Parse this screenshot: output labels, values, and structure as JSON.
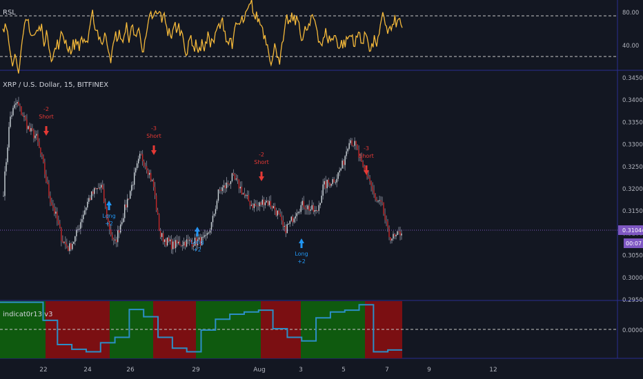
{
  "colors": {
    "background": "#131722",
    "separator": "#2a2e90",
    "rsi_line": "#f5b93a",
    "up_candle": "#cfd8dc",
    "down_candle": "#c62828",
    "wick": "#8d92a0",
    "short_signal": "#e53935",
    "long_signal": "#2196f3",
    "price_tag": "#7e57c2",
    "zone_bull": "#0f5a0f",
    "zone_bear": "#7b0f12",
    "indicator_line": "#2c8fc7"
  },
  "rsi_panel": {
    "title": "RSL",
    "axis_labels": [
      "80.00",
      "40.00"
    ]
  },
  "price_panel": {
    "title": "XRP / U.S. Dollar, 15, BITFINEX",
    "axis_labels": [
      "0.34500",
      "0.34000",
      "0.33500",
      "0.33000",
      "0.32500",
      "0.32000",
      "0.31500",
      "0.31000",
      "0.30500",
      "0.30000",
      "0.29500"
    ],
    "current_price": "0.31044",
    "countdown": "00:07"
  },
  "indicator_panel": {
    "title": "indicat0r13 v3",
    "axis_label": "0.00000"
  },
  "x_axis": {
    "labels": [
      "22",
      "24",
      "26",
      "29",
      "Aug",
      "3",
      "5",
      "7",
      "9",
      "12"
    ]
  },
  "chart_data": {
    "type": "candlestick",
    "series": [
      {
        "name": "XRP / U.S. Dollar",
        "values": [
          0.3195,
          0.336,
          0.3395,
          0.3365,
          0.333,
          0.3318,
          0.326,
          0.3185,
          0.314,
          0.3085,
          0.3065,
          0.309,
          0.3135,
          0.3175,
          0.3195,
          0.3205,
          0.3125,
          0.3072,
          0.3125,
          0.3175,
          0.3225,
          0.3275,
          0.325,
          0.3205,
          0.3095,
          0.3082,
          0.3072,
          0.3078,
          0.308,
          0.308,
          0.3082,
          0.3085,
          0.3125,
          0.3195,
          0.3205,
          0.3225,
          0.321,
          0.3182,
          0.3165,
          0.316,
          0.3175,
          0.3165,
          0.3145,
          0.3105,
          0.3125,
          0.3155,
          0.3165,
          0.3155,
          0.3145,
          0.3205,
          0.3215,
          0.3225,
          0.3255,
          0.3315,
          0.3295,
          0.3245,
          0.3225,
          0.3172,
          0.3162,
          0.3095,
          0.3088,
          0.3105
        ]
      }
    ],
    "signals": [
      {
        "label_top": "-2",
        "label": "Short",
        "kind": "short"
      },
      {
        "label_top": "-3",
        "label": "Short",
        "kind": "short"
      },
      {
        "label_top": "-2",
        "label": "Short",
        "kind": "short"
      },
      {
        "label_top": "-3",
        "label": "Short",
        "kind": "short"
      },
      {
        "label": "Long",
        "label_bottom": "+2",
        "kind": "long"
      },
      {
        "label": "Long",
        "label_bottom": "+2",
        "kind": "long"
      },
      {
        "label": "Long",
        "label_bottom": "+2",
        "kind": "long"
      }
    ],
    "rsi": {
      "range": [
        22,
        97
      ],
      "levels": [
        80,
        40
      ]
    },
    "indicator": {
      "zones": [
        "bull",
        "bear",
        "bull",
        "bear",
        "bull",
        "bear",
        "bull",
        "bear"
      ],
      "line": [
        0.0075,
        0.0075,
        0.0075,
        0.0025,
        -0.0042,
        -0.0055,
        -0.0062,
        -0.0037,
        -0.0022,
        0.0055,
        0.0035,
        -0.0022,
        -0.0052,
        -0.0062,
        -0.0002,
        0.0028,
        0.0042,
        0.0048,
        0.0053,
        0.0002,
        -0.0022,
        -0.0032,
        0.0032,
        0.0048,
        0.0053,
        0.0068,
        -0.0062,
        -0.0057
      ],
      "ylim": [
        -0.008,
        0.008
      ]
    }
  }
}
